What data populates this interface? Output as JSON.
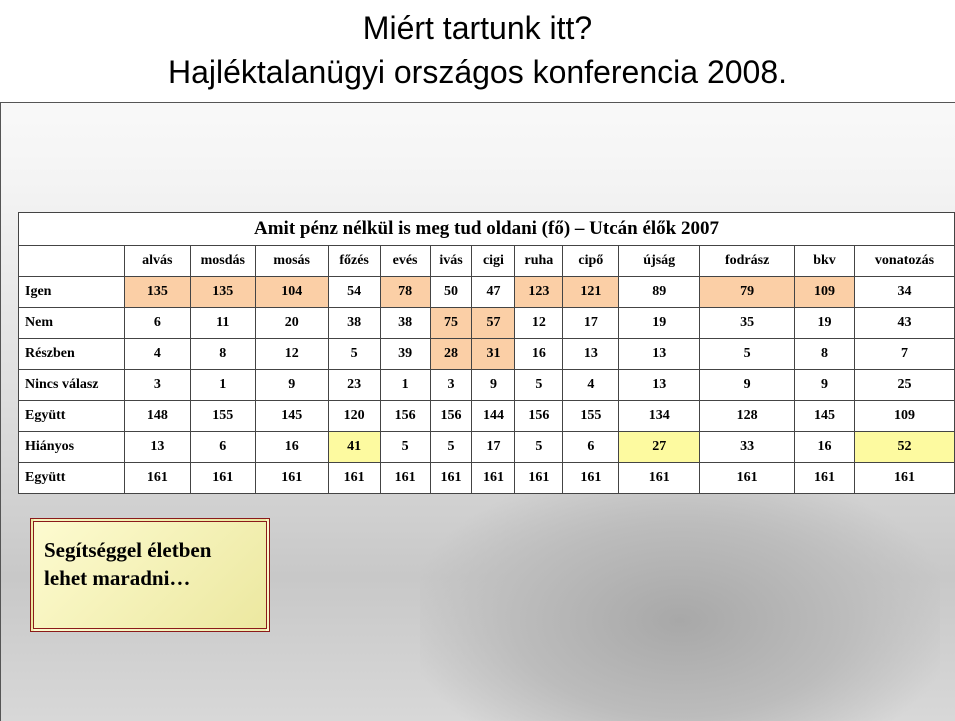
{
  "header": {
    "title_line1": "Miért tartunk itt?",
    "title_line2": "Hajléktalanügyi országos konferencia 2008."
  },
  "table": {
    "caption": "Amit pénz nélkül is meg tud oldani (fő) – Utcán élők 2007",
    "columns": [
      "alvás",
      "mosdás",
      "mosás",
      "főzés",
      "evés",
      "ivás",
      "cigi",
      "ruha",
      "cipő",
      "újság",
      "fodrász",
      "bkv",
      "vonatozás"
    ],
    "rows": [
      {
        "label": "Igen",
        "cells": [
          135,
          135,
          104,
          54,
          78,
          50,
          47,
          123,
          121,
          89,
          79,
          109,
          34
        ],
        "highlight_color": "#fbcfa6",
        "highlighted_columns": [
          0,
          1,
          2,
          4,
          7,
          8,
          10,
          11
        ]
      },
      {
        "label": "Nem",
        "cells": [
          6,
          11,
          20,
          38,
          38,
          75,
          57,
          12,
          17,
          19,
          35,
          19,
          43
        ],
        "highlight_color": "#fbcfa6",
        "highlighted_columns": [
          5,
          6
        ]
      },
      {
        "label": "Részben",
        "cells": [
          4,
          8,
          12,
          5,
          39,
          28,
          31,
          16,
          13,
          13,
          5,
          8,
          7
        ],
        "highlight_color": "#fbcfa6",
        "highlighted_columns": [
          5,
          6
        ]
      },
      {
        "label": "Nincs válasz",
        "cells": [
          3,
          1,
          9,
          23,
          1,
          3,
          9,
          5,
          4,
          13,
          9,
          9,
          25
        ]
      },
      {
        "label": "Együtt",
        "cells": [
          148,
          155,
          145,
          120,
          156,
          156,
          144,
          156,
          155,
          134,
          128,
          145,
          109
        ]
      },
      {
        "label": "Hiányos",
        "cells": [
          13,
          6,
          16,
          41,
          5,
          5,
          17,
          5,
          6,
          27,
          33,
          16,
          52
        ],
        "highlight_color": "#fdfaa0",
        "highlighted_columns": [
          3,
          9,
          12
        ]
      },
      {
        "label": "Együtt",
        "cells": [
          161,
          161,
          161,
          161,
          161,
          161,
          161,
          161,
          161,
          161,
          161,
          161,
          161
        ]
      }
    ]
  },
  "callout": {
    "text": "Segítséggel életben lehet maradni…"
  }
}
